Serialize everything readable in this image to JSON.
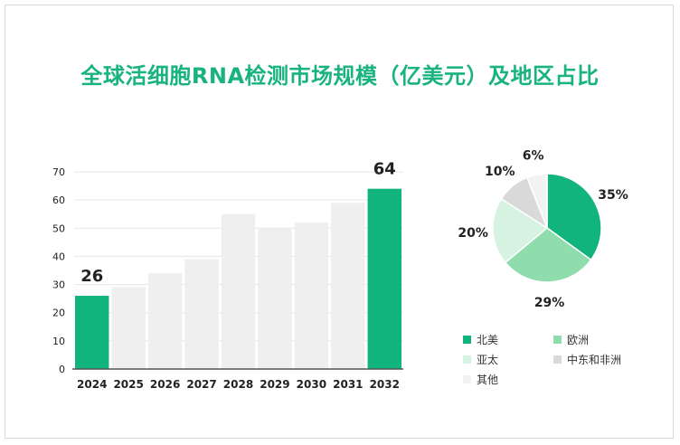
{
  "title": "全球活细胞RNA检测市场规模（亿美元）及地区占比",
  "colors": {
    "accent": "#12b47e",
    "bar_other": "#efefef",
    "grid": "#e6e6e6",
    "axis": "#555555",
    "text": "#222222"
  },
  "chart_data": [
    {
      "type": "bar",
      "title": "全球活细胞RNA检测市场规模（亿美元）",
      "categories": [
        "2024",
        "2025",
        "2026",
        "2027",
        "2028",
        "2029",
        "2030",
        "2031",
        "2032"
      ],
      "values": [
        26,
        29,
        34,
        39,
        55,
        50,
        52,
        59,
        64
      ],
      "highlight": [
        true,
        false,
        false,
        false,
        false,
        false,
        false,
        false,
        true
      ],
      "data_labels": [
        "26",
        "",
        "",
        "",
        "",
        "",
        "",
        "",
        "64"
      ],
      "ylim": [
        0,
        70
      ],
      "yticks": [
        0,
        10,
        20,
        30,
        40,
        50,
        60,
        70
      ],
      "xlabel": "",
      "ylabel": "",
      "grid": true
    },
    {
      "type": "pie",
      "title": "地区占比",
      "labels": [
        "北美",
        "欧洲",
        "亚太",
        "中东和非洲",
        "其他"
      ],
      "values": [
        35,
        29,
        20,
        10,
        6
      ],
      "value_labels": [
        "35%",
        "29%",
        "20%",
        "10%",
        "6%"
      ],
      "colors": [
        "#12b47e",
        "#8fdcac",
        "#d6f2e1",
        "#d9d9d9",
        "#f2f2f2"
      ],
      "legend_position": "bottom"
    }
  ]
}
